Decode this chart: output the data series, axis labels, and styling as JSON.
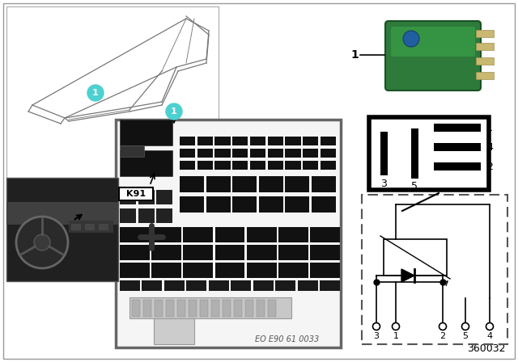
{
  "bg_color": "#ffffff",
  "outer_border_color": "#cccccc",
  "cyan_color": "#4dd0d0",
  "diagram_number": "360032",
  "eo_text": "EO E90 61 0033",
  "k91_label": "K91",
  "schematic_pins": [
    "3",
    "1",
    "2",
    "5",
    "4"
  ]
}
